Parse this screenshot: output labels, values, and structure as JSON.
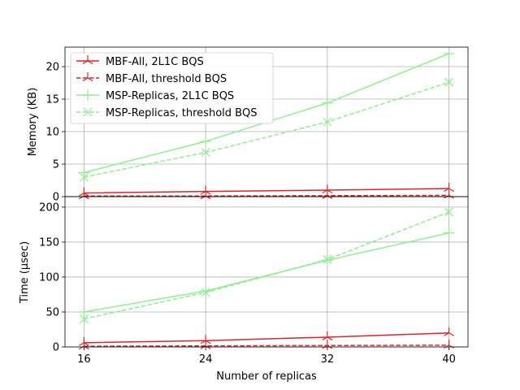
{
  "chart_data": {
    "type": "line",
    "x": [
      16,
      24,
      32,
      40
    ],
    "xlabel": "Number of replicas",
    "xticks": [
      "16",
      "24",
      "32",
      "40"
    ],
    "panels": [
      {
        "id": "memory",
        "ylabel": "Memory (KB)",
        "ylim": [
          0,
          23
        ],
        "yticks": [
          "0",
          "5",
          "10",
          "15",
          "20"
        ],
        "grid": true
      },
      {
        "id": "time",
        "ylabel": "Time (µsec)",
        "ylim": [
          0,
          215
        ],
        "yticks": [
          "0",
          "50",
          "100",
          "150",
          "200"
        ],
        "grid": true
      }
    ],
    "legend": {
      "placement": "upper-left",
      "panel": "memory"
    },
    "series": [
      {
        "name": "MBF-All, 2L1C BQS",
        "color": "#d62728",
        "style": "solid",
        "marker": "tri-down",
        "memory": [
          0.55,
          0.8,
          1.0,
          1.25
        ],
        "time": [
          6,
          9,
          14,
          20
        ]
      },
      {
        "name": "MBF-All, threshold BQS",
        "color": "#d62728",
        "style": "dashed",
        "marker": "tri-down",
        "memory": [
          0.1,
          0.1,
          0.15,
          0.2
        ],
        "time": [
          1,
          1.5,
          2,
          2.5
        ]
      },
      {
        "name": "MSP-Replicas, 2L1C BQS",
        "color": "#90ee90",
        "style": "solid",
        "marker": "plus",
        "memory": [
          3.7,
          8.5,
          14.4,
          22.0
        ],
        "time": [
          50,
          80,
          124,
          163
        ]
      },
      {
        "name": "MSP-Replicas, threshold BQS",
        "color": "#90ee90",
        "style": "dashed",
        "marker": "x",
        "memory": [
          3.0,
          6.8,
          11.5,
          17.6
        ],
        "time": [
          40,
          78,
          125,
          193
        ]
      }
    ]
  }
}
